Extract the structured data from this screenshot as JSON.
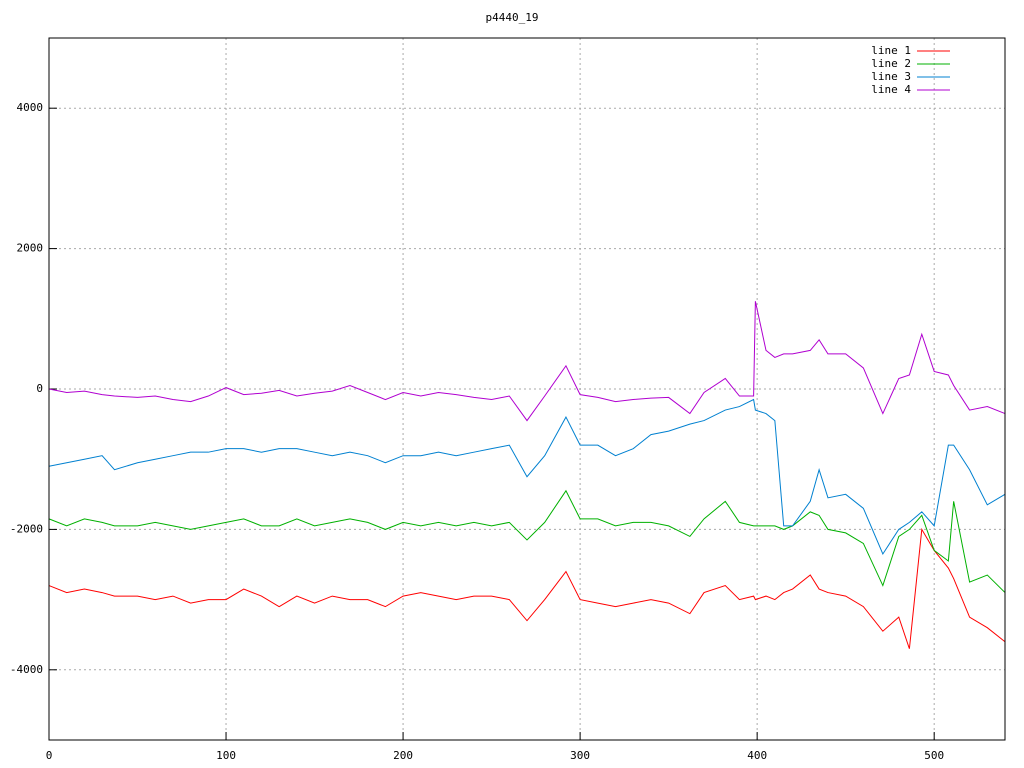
{
  "chart_data": {
    "type": "line",
    "title": "p4440_19",
    "x": [
      0,
      10,
      20,
      30,
      37,
      50,
      60,
      70,
      80,
      90,
      100,
      110,
      120,
      130,
      140,
      150,
      160,
      170,
      180,
      190,
      200,
      210,
      220,
      230,
      240,
      250,
      260,
      270,
      280,
      292,
      300,
      310,
      320,
      330,
      340,
      350,
      362,
      370,
      382,
      390,
      398,
      399,
      405,
      410,
      415,
      420,
      430,
      435,
      440,
      450,
      460,
      471,
      480,
      486,
      493,
      500,
      508,
      511,
      520,
      530,
      540
    ],
    "series": [
      {
        "name": "line 1",
        "color": "#ff0000",
        "values": [
          -2800,
          -2900,
          -2850,
          -2900,
          -2950,
          -2950,
          -3000,
          -2950,
          -3050,
          -3000,
          -3000,
          -2850,
          -2950,
          -3100,
          -2950,
          -3050,
          -2950,
          -3000,
          -3000,
          -3100,
          -2950,
          -2900,
          -2950,
          -3000,
          -2950,
          -2950,
          -3000,
          -3300,
          -3000,
          -2600,
          -3000,
          -3050,
          -3100,
          -3050,
          -3000,
          -3050,
          -3200,
          -2900,
          -2800,
          -3000,
          -2950,
          -3000,
          -2950,
          -3000,
          -2900,
          -2850,
          -2650,
          -2850,
          -2900,
          -2950,
          -3100,
          -3450,
          -3250,
          -3700,
          -2000,
          -2300,
          -2550,
          -2700,
          -3250,
          -3400,
          -3600
        ]
      },
      {
        "name": "line 2",
        "color": "#00b000",
        "values": [
          -1850,
          -1950,
          -1850,
          -1900,
          -1950,
          -1950,
          -1900,
          -1950,
          -2000,
          -1950,
          -1900,
          -1850,
          -1950,
          -1950,
          -1850,
          -1950,
          -1900,
          -1850,
          -1900,
          -2000,
          -1900,
          -1950,
          -1900,
          -1950,
          -1900,
          -1950,
          -1900,
          -2150,
          -1900,
          -1450,
          -1850,
          -1850,
          -1950,
          -1900,
          -1900,
          -1950,
          -2100,
          -1850,
          -1600,
          -1900,
          -1950,
          -1950,
          -1950,
          -1950,
          -2000,
          -1950,
          -1750,
          -1800,
          -2000,
          -2050,
          -2200,
          -2800,
          -2100,
          -2000,
          -1800,
          -2300,
          -2450,
          -1600,
          -2750,
          -2650,
          -2900
        ]
      },
      {
        "name": "line 3",
        "color": "#0080d0",
        "values": [
          -1100,
          -1050,
          -1000,
          -950,
          -1150,
          -1050,
          -1000,
          -950,
          -900,
          -900,
          -850,
          -850,
          -900,
          -850,
          -850,
          -900,
          -950,
          -900,
          -950,
          -1050,
          -950,
          -950,
          -900,
          -950,
          -900,
          -850,
          -800,
          -1250,
          -950,
          -400,
          -800,
          -800,
          -950,
          -850,
          -650,
          -600,
          -500,
          -450,
          -300,
          -250,
          -150,
          -300,
          -350,
          -450,
          -1950,
          -1950,
          -1600,
          -1150,
          -1550,
          -1500,
          -1700,
          -2350,
          -2000,
          -1900,
          -1750,
          -1950,
          -800,
          -800,
          -1150,
          -1650,
          -1500
        ]
      },
      {
        "name": "line 4",
        "color": "#b000d0",
        "values": [
          0,
          -50,
          -30,
          -80,
          -100,
          -120,
          -100,
          -150,
          -180,
          -100,
          20,
          -80,
          -60,
          -20,
          -100,
          -60,
          -30,
          50,
          -50,
          -150,
          -50,
          -100,
          -50,
          -80,
          -120,
          -150,
          -100,
          -450,
          -100,
          330,
          -80,
          -120,
          -180,
          -150,
          -130,
          -120,
          -350,
          -50,
          150,
          -100,
          -100,
          1250,
          550,
          450,
          500,
          500,
          550,
          700,
          500,
          500,
          300,
          -350,
          150,
          200,
          780,
          250,
          200,
          50,
          -300,
          -250,
          -350
        ]
      }
    ],
    "xlim": [
      0,
      540
    ],
    "ylim": [
      -5000,
      5000
    ],
    "xticks": [
      0,
      100,
      200,
      300,
      400,
      500
    ],
    "yticks": [
      -4000,
      -2000,
      0,
      2000,
      4000
    ],
    "grid": true,
    "legend": "top-right"
  }
}
